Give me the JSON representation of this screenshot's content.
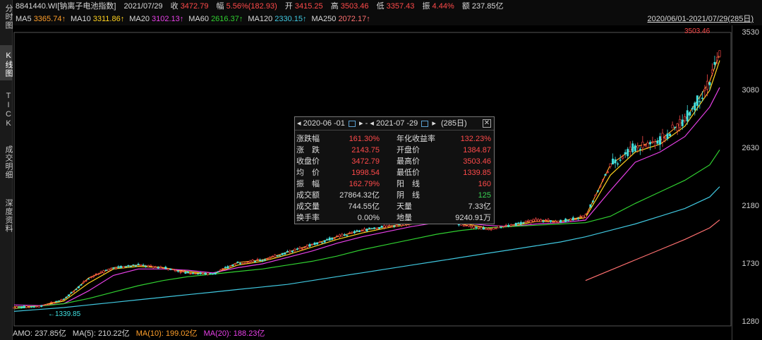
{
  "header": {
    "code": "8841440.WI[钠离子电池指数]",
    "date": "2021/07/29",
    "close_label": "收",
    "close": "3472.79",
    "chg_label": "幅",
    "chg": "5.56%(182.93)",
    "open_label": "开",
    "open": "3415.25",
    "high_label": "高",
    "high": "3503.46",
    "low_label": "低",
    "low": "3357.43",
    "amp_label": "振",
    "amp": "4.44%",
    "amt_label": "额",
    "amt": "237.85亿",
    "range": "2020/06/01-2021/07/29(285日)"
  },
  "ma_legend": [
    {
      "label": "MA5",
      "value": "3365.74↑",
      "color": "#ff9f2a"
    },
    {
      "label": "MA10",
      "value": "3311.86↑",
      "color": "#ffd21f"
    },
    {
      "label": "MA20",
      "value": "3102.13↑",
      "color": "#e840e8"
    },
    {
      "label": "MA60",
      "value": "2616.37↑",
      "color": "#30d030"
    },
    {
      "label": "MA120",
      "value": "2330.15↑",
      "color": "#40c8e0"
    },
    {
      "label": "MA250",
      "value": "2072.17↑",
      "color": "#ff7070"
    }
  ],
  "sidebar": {
    "tab1": "分时图",
    "tab2": "K线图",
    "tab3": "TICK",
    "tab4": "成交明细",
    "tab5": "深度资料"
  },
  "footer": {
    "amo_label": "AMO:",
    "amo": "237.85亿",
    "ma5_label": "MA(5):",
    "ma5": "210.22亿",
    "ma10_label": "MA(10):",
    "ma10": "199.02亿",
    "ma20_label": "MA(20):",
    "ma20": "188.23亿"
  },
  "popup": {
    "start": "2020-06 -01",
    "sep": "-",
    "end": "2021-07 -29",
    "days": "(285日)",
    "rows": [
      {
        "l1": "涨跌幅",
        "v1": "161.30%",
        "c1": "#ff4a4a",
        "l2": "年化收益率",
        "v2": "132.23%",
        "c2": "#ff4a4a"
      },
      {
        "l1": "涨　跌",
        "v1": "2143.75",
        "c1": "#ff4a4a",
        "l2": "开盘价",
        "v2": "1384.87",
        "c2": "#ff4a4a"
      },
      {
        "l1": "收盘价",
        "v1": "3472.79",
        "c1": "#ff4a4a",
        "l2": "最高价",
        "v2": "3503.46",
        "c2": "#ff4a4a"
      },
      {
        "l1": "均　价",
        "v1": "1998.54",
        "c1": "#ff4a4a",
        "l2": "最低价",
        "v2": "1339.85",
        "c2": "#ff4a4a"
      },
      {
        "l1": "振　幅",
        "v1": "162.79%",
        "c1": "#ff4a4a",
        "l2": "阳　线",
        "v2": "160",
        "c2": "#ff4a4a"
      },
      {
        "l1": "成交额",
        "v1": "27864.32亿",
        "c1": "#dddddd",
        "l2": "阴　线",
        "v2": "125",
        "c2": "#39d353"
      },
      {
        "l1": "成交量",
        "v1": "744.55亿",
        "c1": "#dddddd",
        "l2": "天量",
        "v2": "7.33亿",
        "c2": "#dddddd"
      },
      {
        "l1": "换手率",
        "v1": "0.00%",
        "c1": "#dddddd",
        "l2": "地量",
        "v2": "9240.91万",
        "c2": "#dddddd"
      }
    ]
  },
  "chart_data": {
    "type": "line",
    "title": "",
    "ylim": [
      1280,
      3530
    ],
    "yticks": [
      "3530",
      "3080",
      "2630",
      "2180",
      "1730",
      "1280"
    ],
    "high_marker": "3503.46",
    "low_marker": "1339.85",
    "x": [
      0,
      10,
      20,
      30,
      40,
      50,
      60,
      70,
      80,
      90,
      100,
      110,
      120,
      130,
      140,
      150,
      160,
      170,
      180,
      190,
      200,
      210,
      220,
      230,
      240,
      250,
      260,
      270,
      280,
      284
    ],
    "series": [
      {
        "name": "MA5",
        "color": "#ff9f2a",
        "values": [
          1390,
          1400,
          1450,
          1620,
          1700,
          1720,
          1700,
          1660,
          1650,
          1740,
          1760,
          1820,
          1880,
          1940,
          1990,
          2020,
          2050,
          2080,
          2040,
          2000,
          2030,
          2070,
          2060,
          2100,
          2500,
          2640,
          2690,
          2850,
          3150,
          3366
        ]
      },
      {
        "name": "MA10",
        "color": "#ffd21f",
        "values": [
          1395,
          1400,
          1440,
          1580,
          1690,
          1710,
          1700,
          1670,
          1650,
          1720,
          1750,
          1800,
          1860,
          1920,
          1970,
          2010,
          2040,
          2070,
          2050,
          2010,
          2020,
          2060,
          2060,
          2090,
          2420,
          2600,
          2660,
          2800,
          3080,
          3312
        ]
      },
      {
        "name": "MA20",
        "color": "#e840e8",
        "values": [
          1410,
          1405,
          1420,
          1520,
          1640,
          1690,
          1690,
          1680,
          1660,
          1700,
          1730,
          1780,
          1830,
          1890,
          1940,
          1980,
          2020,
          2050,
          2050,
          2030,
          2020,
          2040,
          2050,
          2070,
          2300,
          2520,
          2600,
          2720,
          2950,
          3102
        ]
      },
      {
        "name": "MA60",
        "color": "#30d030",
        "values": [
          1380,
          1400,
          1420,
          1460,
          1510,
          1560,
          1600,
          1630,
          1650,
          1670,
          1690,
          1720,
          1750,
          1790,
          1840,
          1880,
          1920,
          1960,
          1990,
          2010,
          2020,
          2030,
          2040,
          2050,
          2100,
          2200,
          2290,
          2380,
          2500,
          2616
        ]
      },
      {
        "name": "MA120",
        "color": "#40c8e0",
        "values": [
          1360,
          1375,
          1390,
          1410,
          1430,
          1450,
          1470,
          1490,
          1510,
          1530,
          1550,
          1570,
          1600,
          1630,
          1660,
          1690,
          1720,
          1750,
          1780,
          1810,
          1840,
          1870,
          1900,
          1940,
          1990,
          2040,
          2100,
          2160,
          2250,
          2330
        ]
      },
      {
        "name": "MA250",
        "color": "#ff7070",
        "values": [
          null,
          null,
          null,
          null,
          null,
          null,
          null,
          null,
          null,
          null,
          null,
          null,
          null,
          null,
          null,
          null,
          null,
          null,
          null,
          null,
          null,
          null,
          null,
          1600,
          1680,
          1760,
          1840,
          1920,
          2010,
          2072
        ]
      }
    ]
  }
}
